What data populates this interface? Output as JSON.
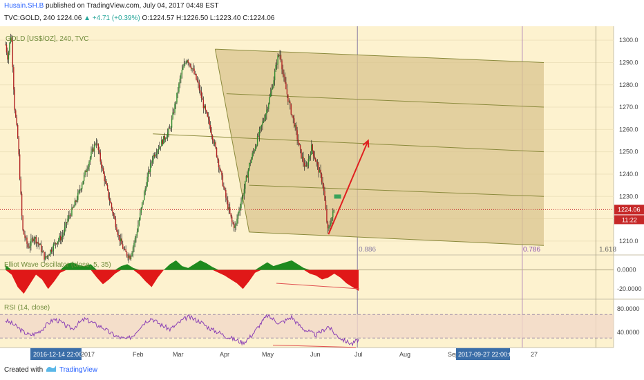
{
  "header": {
    "author": "Husain.SH.B",
    "published_text": "published on TradingView.com, July 04, 2017 04:48 EST",
    "symbol_line": "TVC:GOLD, 240",
    "last": "1224.06",
    "change": "+4.71 (+0.39%)",
    "ohlc_o": "O:1224.57",
    "ohlc_h": "H:1226.50",
    "ohlc_l": "L:1223.40",
    "ohlc_c": "C:1224.06"
  },
  "footer": {
    "created_with": "Created with",
    "brand": "TradingView"
  },
  "chart_data": {
    "type": "candlestick",
    "main_title": "GOLD [US$/OZ], 240, TVC",
    "y_ticks": [
      1300,
      1290,
      1280,
      1270,
      1260,
      1250,
      1240,
      1230,
      1220,
      1210
    ],
    "ylim": [
      1205,
      1305
    ],
    "last_price_label": "1224.06",
    "countdown_label": "11:22",
    "x_ticks": [
      "2016-12-14 22:00:00",
      "2017",
      "Feb",
      "Mar",
      "Apr",
      "May",
      "Jun",
      "Jul",
      "Aug",
      "Sep",
      "2017-09-27 22:00:00",
      "27"
    ],
    "fib_labels": [
      "0.886",
      "0.786",
      "1.618"
    ],
    "price_path": [
      [
        0,
        1298
      ],
      [
        0.4,
        1292
      ],
      [
        1,
        1304
      ],
      [
        1.6,
        1270
      ],
      [
        2.2,
        1255
      ],
      [
        3,
        1215
      ],
      [
        4,
        1207
      ],
      [
        5,
        1212
      ],
      [
        6,
        1208
      ],
      [
        7,
        1202
      ],
      [
        8,
        1206
      ],
      [
        9,
        1210
      ],
      [
        10,
        1212
      ],
      [
        11,
        1220
      ],
      [
        12,
        1225
      ],
      [
        13,
        1232
      ],
      [
        14,
        1240
      ],
      [
        15,
        1248
      ],
      [
        16,
        1255
      ],
      [
        17,
        1243
      ],
      [
        18,
        1232
      ],
      [
        19,
        1222
      ],
      [
        20,
        1212
      ],
      [
        21,
        1205
      ],
      [
        22,
        1203
      ],
      [
        23,
        1212
      ],
      [
        24,
        1225
      ],
      [
        25,
        1238
      ],
      [
        26,
        1248
      ],
      [
        27,
        1252
      ],
      [
        28,
        1256
      ],
      [
        29,
        1260
      ],
      [
        30,
        1272
      ],
      [
        31,
        1285
      ],
      [
        32,
        1292
      ],
      [
        33,
        1287
      ],
      [
        34,
        1280
      ],
      [
        35,
        1270
      ],
      [
        36,
        1262
      ],
      [
        37,
        1252
      ],
      [
        38,
        1240
      ],
      [
        39,
        1228
      ],
      [
        40,
        1218
      ],
      [
        40.6,
        1216
      ],
      [
        41,
        1222
      ],
      [
        42,
        1232
      ],
      [
        43,
        1244
      ],
      [
        44,
        1252
      ],
      [
        45,
        1260
      ],
      [
        46,
        1268
      ],
      [
        47,
        1278
      ],
      [
        48,
        1292
      ],
      [
        48.5,
        1294
      ],
      [
        49,
        1284
      ],
      [
        50,
        1272
      ],
      [
        51,
        1262
      ],
      [
        52,
        1250
      ],
      [
        53,
        1242
      ],
      [
        54,
        1252
      ],
      [
        55,
        1244
      ],
      [
        56,
        1236
      ],
      [
        56.9,
        1214
      ],
      [
        57.5,
        1220
      ],
      [
        58,
        1224.06
      ]
    ],
    "pitchfork": {
      "lines": [
        {
          "x1": 37,
          "y1": 1296,
          "x2": 95,
          "y2": 1290
        },
        {
          "x1": 39,
          "y1": 1276,
          "x2": 95,
          "y2": 1270
        },
        {
          "x1": 26,
          "y1": 1258,
          "x2": 95,
          "y2": 1250
        },
        {
          "x1": 43,
          "y1": 1235,
          "x2": 95,
          "y2": 1230
        },
        {
          "x1": 43,
          "y1": 1214,
          "x2": 95,
          "y2": 1208
        }
      ],
      "shade": [
        [
          37,
          1296
        ],
        [
          95,
          1290
        ],
        [
          95,
          1208
        ],
        [
          43,
          1214
        ]
      ],
      "median_start": [
        37,
        1296
      ],
      "median_end": [
        43,
        1214
      ]
    },
    "projection_arrow": {
      "x1": 57,
      "y1": 1213,
      "x2": 64,
      "y2": 1255
    },
    "last_price": 1224.06,
    "ewo": {
      "title": "Elliot Wave Oscillator (close, 5, 35)",
      "y_ticks": [
        "0.0000",
        "-20.0000"
      ],
      "ylim": [
        -30,
        15
      ],
      "values": [
        5,
        -5,
        -18,
        -25,
        -15,
        -5,
        -10,
        -20,
        -12,
        -3,
        6,
        8,
        5,
        4,
        6,
        -8,
        -15,
        -10,
        -4,
        4,
        6,
        2,
        -5,
        -12,
        -18,
        -8,
        0,
        6,
        10,
        4,
        2,
        6,
        10,
        7,
        3,
        -3,
        -6,
        -10,
        -14,
        -20,
        -12,
        -3,
        4,
        8,
        4,
        6,
        8,
        10,
        6,
        2,
        -4,
        -6,
        -10,
        -8,
        -4,
        -8,
        -14,
        -18,
        -22
      ]
    },
    "rsi": {
      "title": "RSI (14, close)",
      "y_ticks": [
        "80.0000",
        "40.0000"
      ],
      "ylim": [
        15,
        95
      ],
      "upper_band": 70,
      "lower_band": 30,
      "values": [
        60,
        55,
        48,
        40,
        35,
        38,
        45,
        55,
        62,
        58,
        50,
        46,
        55,
        62,
        58,
        52,
        48,
        40,
        34,
        30,
        28,
        35,
        48,
        58,
        64,
        56,
        50,
        45,
        52,
        60,
        66,
        62,
        58,
        50,
        44,
        40,
        34,
        30,
        26,
        22,
        30,
        42,
        56,
        68,
        62,
        55,
        60,
        66,
        54,
        45,
        40,
        35,
        42,
        50,
        38,
        30,
        24,
        20,
        28
      ]
    }
  }
}
